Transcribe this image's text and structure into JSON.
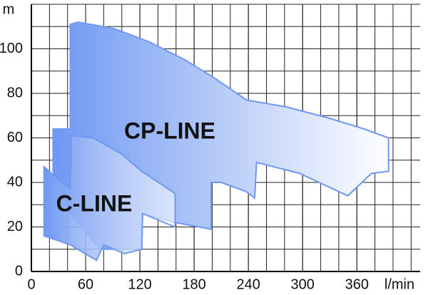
{
  "chart_data": {
    "type": "area",
    "x_label": "l/min",
    "y_label": "m",
    "xlim": [
      0,
      430
    ],
    "ylim": [
      0,
      120
    ],
    "xticks": [
      0,
      60,
      120,
      180,
      240,
      300,
      360
    ],
    "yticks": [
      0,
      20,
      40,
      60,
      80,
      100
    ],
    "grid": true,
    "series": [
      {
        "name": "CP-LINE",
        "color": "#6f98f2",
        "x": [
          43,
          52,
          92,
          131,
          170,
          202,
          238,
          281,
          328,
          368,
          395,
          395,
          376,
          350,
          297,
          249,
          247,
          237,
          210,
          199,
          199,
          159,
          123,
          122,
          76,
          43,
          24,
          24,
          43
        ],
        "y": [
          111,
          112,
          109,
          103,
          95,
          87,
          77,
          74,
          69,
          64,
          60,
          45,
          44,
          34,
          44,
          49,
          33,
          36,
          40,
          40,
          19,
          22,
          26,
          10,
          10,
          26,
          45,
          64,
          64
        ]
      },
      {
        "name": "C-LINE",
        "color": "#6f98f2",
        "x": [
          14,
          43,
          44,
          68,
          99,
          122,
          159,
          159,
          123,
          122,
          103,
          80,
          72,
          43,
          14
        ],
        "y": [
          47,
          37,
          61,
          60,
          53,
          45,
          35,
          20,
          26,
          10,
          8,
          12,
          5,
          12,
          16
        ]
      }
    ]
  }
}
